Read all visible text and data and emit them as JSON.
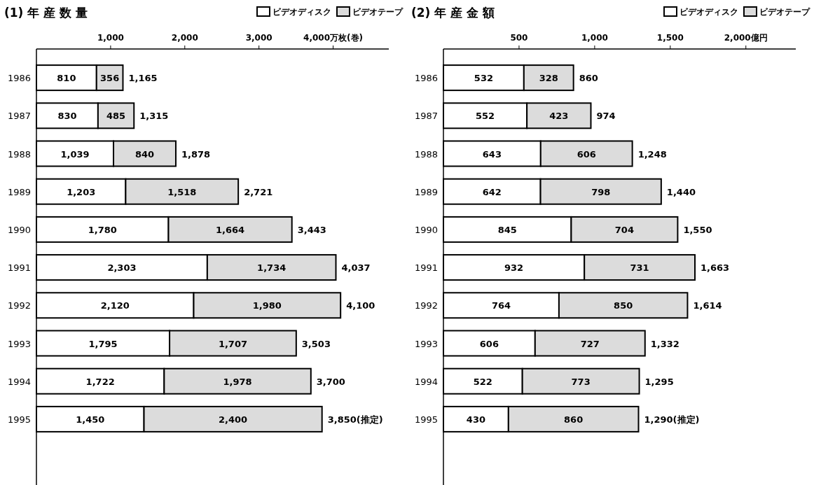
{
  "chart_data": [
    {
      "type": "bar",
      "title": "(1) 年 産 数 量",
      "orientation": "horizontal",
      "stacked": true,
      "legend": "top right",
      "categories": [
        "1986",
        "1987",
        "1988",
        "1989",
        "1990",
        "1991",
        "1992",
        "1993",
        "1994",
        "1995"
      ],
      "xlim": [
        0,
        4750
      ],
      "xticks": [
        {
          "value": 1000,
          "label": "1,000"
        },
        {
          "value": 2000,
          "label": "2,000"
        },
        {
          "value": 3000,
          "label": "3,000"
        },
        {
          "value": 4000,
          "label": "4,000万枚(巻)"
        }
      ],
      "series": [
        {
          "name": "ビデオディスク",
          "color": "#ffffff",
          "values": [
            810,
            830,
            1039,
            1203,
            1780,
            2303,
            2120,
            1795,
            1722,
            1450
          ],
          "value_labels": [
            "810",
            "830",
            "1,039",
            "1,203",
            "1,780",
            "2,303",
            "2,120",
            "1,795",
            "1,722",
            "1,450"
          ]
        },
        {
          "name": "ビデオテープ",
          "color": "#dcdcdc",
          "values": [
            356,
            485,
            840,
            1518,
            1664,
            1734,
            1980,
            1707,
            1978,
            2400
          ],
          "value_labels": [
            "356",
            "485",
            "840",
            "1,518",
            "1,664",
            "1,734",
            "1,980",
            "1,707",
            "1,978",
            "2,400"
          ]
        }
      ],
      "totals": [
        "1,165",
        "1,315",
        "1,878",
        "2,721",
        "3,443",
        "4,037",
        "4,100",
        "3,503",
        "3,700",
        "3,850(推定)"
      ]
    },
    {
      "type": "bar",
      "title": "(2) 年 産 金 額",
      "orientation": "horizontal",
      "stacked": true,
      "legend": "top right",
      "categories": [
        "1986",
        "1987",
        "1988",
        "1989",
        "1990",
        "1991",
        "1992",
        "1993",
        "1994",
        "1995"
      ],
      "xlim": [
        0,
        2330
      ],
      "xticks": [
        500,
        {
          "value": 1000,
          "label": "1,000"
        },
        {
          "value": 1500,
          "label": "1,500"
        },
        {
          "value": 2000,
          "label": "2,000億円"
        }
      ],
      "series": [
        {
          "name": "ビデオディスク",
          "color": "#ffffff",
          "values": [
            532,
            552,
            643,
            642,
            845,
            932,
            764,
            606,
            522,
            430
          ],
          "value_labels": [
            "532",
            "552",
            "643",
            "642",
            "845",
            "932",
            "764",
            "606",
            "522",
            "430"
          ]
        },
        {
          "name": "ビデオテープ",
          "color": "#dcdcdc",
          "values": [
            328,
            423,
            606,
            798,
            704,
            731,
            850,
            727,
            773,
            860
          ],
          "value_labels": [
            "328",
            "423",
            "606",
            "798",
            "704",
            "731",
            "850",
            "727",
            "773",
            "860"
          ]
        }
      ],
      "totals": [
        "860",
        "974",
        "1,248",
        "1,440",
        "1,550",
        "1,663",
        "1,614",
        "1,332",
        "1,295",
        "1,290(推定)"
      ]
    }
  ]
}
